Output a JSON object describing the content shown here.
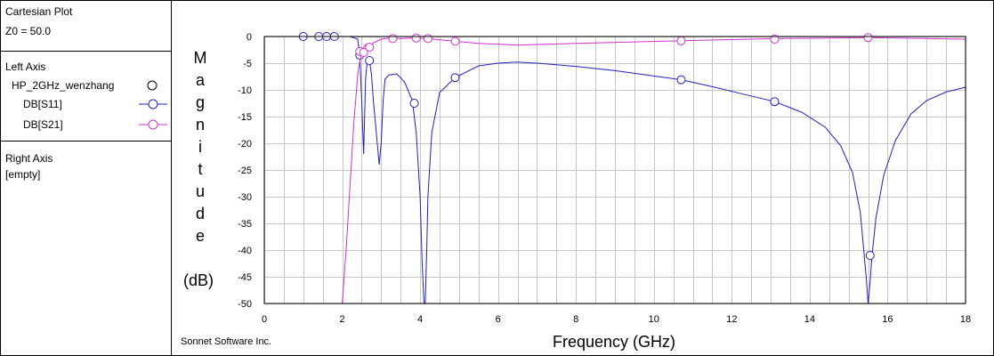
{
  "sidebar": {
    "plot_title": "Cartesian Plot",
    "z0": "Z0 = 50.0",
    "left_axis_heading": "Left Axis",
    "project_name": "HP_2GHz_wenzhang",
    "right_axis_heading": "Right Axis",
    "right_axis_value": "[empty]",
    "legend": [
      {
        "label": "DB[S11]",
        "color": "#2020c0"
      },
      {
        "label": "DB[S21]",
        "color": "#d030d0"
      }
    ]
  },
  "footer": {
    "vendor": "Sonnet Software Inc."
  },
  "chart_data": {
    "type": "line",
    "title": "",
    "xlabel": "Frequency (GHz)",
    "ylabel": "Magnitude (dB)",
    "ylabel_letters": [
      "M",
      "a",
      "g",
      "n",
      "i",
      "t",
      "u",
      "d",
      "e"
    ],
    "ylabel_unit": "(dB)",
    "xlim": [
      0,
      18
    ],
    "ylim": [
      -50,
      0
    ],
    "x_ticks": [
      0,
      2,
      4,
      6,
      8,
      10,
      12,
      14,
      16,
      18
    ],
    "y_ticks": [
      0,
      -5,
      -10,
      -15,
      -20,
      -25,
      -30,
      -35,
      -40,
      -45,
      -50
    ],
    "grid": true,
    "series": [
      {
        "name": "DB[S11]",
        "color": "#2020c0",
        "x": [
          1.0,
          1.4,
          1.6,
          1.8,
          2.2,
          2.4,
          2.45,
          2.5,
          2.55,
          2.6,
          2.65,
          2.7,
          2.75,
          2.8,
          2.9,
          2.95,
          3.0,
          3.05,
          3.1,
          3.2,
          3.4,
          3.6,
          3.8,
          3.9,
          4.0,
          4.05,
          4.1,
          4.13,
          4.17,
          4.2,
          4.3,
          4.5,
          4.9,
          5.5,
          6.0,
          6.5,
          7.0,
          8.0,
          9.0,
          10.0,
          10.7,
          11.5,
          12.3,
          13.1,
          13.8,
          14.4,
          14.8,
          15.1,
          15.3,
          15.45,
          15.5,
          15.55,
          15.6,
          15.7,
          15.9,
          16.2,
          16.6,
          17.0,
          17.5,
          18.0
        ],
        "y": [
          0,
          0,
          0,
          0,
          0,
          -0.5,
          -3.5,
          -12,
          -22,
          -8,
          -4,
          -4.5,
          -7,
          -12,
          -20,
          -24,
          -20,
          -12,
          -8,
          -7.2,
          -7,
          -8.5,
          -12,
          -18,
          -30,
          -42,
          -50,
          -50,
          -40,
          -30,
          -18,
          -10.5,
          -7.7,
          -5.5,
          -5.0,
          -4.8,
          -5.0,
          -5.6,
          -6.4,
          -7.4,
          -8.1,
          -9.4,
          -10.8,
          -12.2,
          -14.2,
          -17,
          -20.5,
          -25.5,
          -33,
          -45,
          -50,
          -46,
          -41,
          -34,
          -26,
          -19.5,
          -14.5,
          -12,
          -10.4,
          -9.5
        ],
        "markers_x": [
          1.0,
          1.4,
          1.6,
          1.8,
          2.45,
          2.7,
          3.85,
          4.9,
          10.7,
          13.1,
          15.55
        ],
        "markers_y": [
          0,
          0,
          0,
          0,
          -3.5,
          -4.5,
          -12.5,
          -7.7,
          -8.1,
          -12.2,
          -41
        ]
      },
      {
        "name": "DB[S21]",
        "color": "#d030d0",
        "x": [
          2.0,
          2.1,
          2.2,
          2.3,
          2.4,
          2.5,
          2.6,
          2.7,
          2.8,
          3.0,
          3.2,
          3.5,
          3.8,
          4.2,
          4.9,
          5.5,
          6.5,
          8.0,
          10.7,
          13.1,
          15.5,
          18.0
        ],
        "y": [
          -50,
          -40,
          -28,
          -16,
          -7,
          -2.5,
          -1.5,
          -2,
          -1.2,
          -0.5,
          -0.3,
          -0.4,
          -0.3,
          -0.4,
          -0.9,
          -1.3,
          -1.6,
          -1.3,
          -0.8,
          -0.4,
          -0.2,
          -0.5
        ],
        "markers_x": [
          2.45,
          2.55,
          2.7,
          3.3,
          3.9,
          4.2,
          4.9,
          10.7,
          13.1,
          15.5
        ],
        "markers_y": [
          -2.8,
          -3.0,
          -2.0,
          -0.4,
          -0.3,
          -0.4,
          -0.9,
          -0.8,
          -0.5,
          -0.2
        ]
      }
    ]
  }
}
